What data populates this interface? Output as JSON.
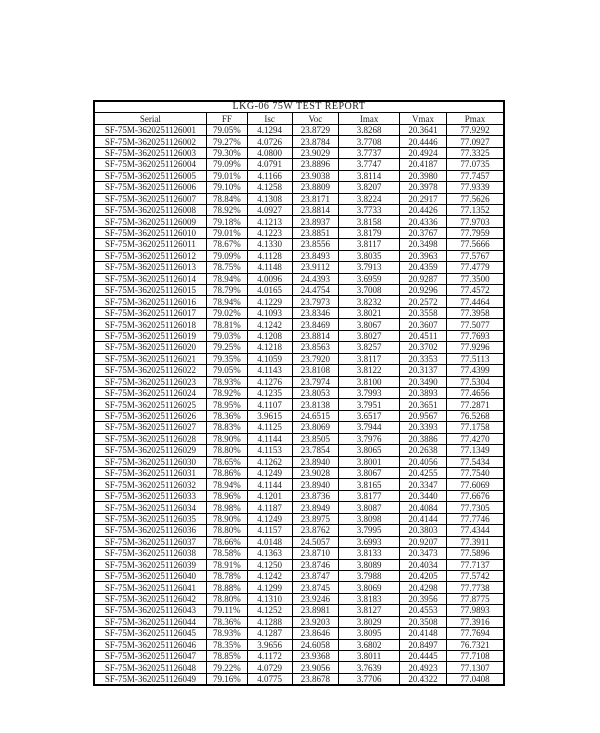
{
  "report": {
    "title": "LKG-06 75W TEST REPORT",
    "columns": [
      "Serial",
      "FF",
      "Isc",
      "Voc",
      "Imax",
      "Vmax",
      "Pmax"
    ],
    "rows": [
      [
        "SF-75M-3620251126001",
        "79.05%",
        "4.1294",
        "23.8729",
        "3.8268",
        "20.3641",
        "77.9292"
      ],
      [
        "SF-75M-3620251126002",
        "79.27%",
        "4.0726",
        "23.8784",
        "3.7708",
        "20.4446",
        "77.0927"
      ],
      [
        "SF-75M-3620251126003",
        "79.30%",
        "4.0800",
        "23.9029",
        "3.7737",
        "20.4924",
        "77.3325"
      ],
      [
        "SF-75M-3620251126004",
        "79.09%",
        "4.0791",
        "23.8896",
        "3.7747",
        "20.4187",
        "77.0735"
      ],
      [
        "SF-75M-3620251126005",
        "79.01%",
        "4.1166",
        "23.9038",
        "3.8114",
        "20.3980",
        "77.7457"
      ],
      [
        "SF-75M-3620251126006",
        "79.10%",
        "4.1258",
        "23.8809",
        "3.8207",
        "20.3978",
        "77.9339"
      ],
      [
        "SF-75M-3620251126007",
        "78.84%",
        "4.1308",
        "23.8171",
        "3.8224",
        "20.2917",
        "77.5626"
      ],
      [
        "SF-75M-3620251126008",
        "78.92%",
        "4.0927",
        "23.8814",
        "3.7733",
        "20.4426",
        "77.1352"
      ],
      [
        "SF-75M-3620251126009",
        "79.18%",
        "4.1213",
        "23.8937",
        "3.8158",
        "20.4336",
        "77.9703"
      ],
      [
        "SF-75M-3620251126010",
        "79.01%",
        "4.1223",
        "23.8851",
        "3.8179",
        "20.3767",
        "77.7959"
      ],
      [
        "SF-75M-3620251126011",
        "78.67%",
        "4.1330",
        "23.8556",
        "3.8117",
        "20.3498",
        "77.5666"
      ],
      [
        "SF-75M-3620251126012",
        "79.09%",
        "4.1128",
        "23.8493",
        "3.8035",
        "20.3963",
        "77.5767"
      ],
      [
        "SF-75M-3620251126013",
        "78.75%",
        "4.1148",
        "23.9112",
        "3.7913",
        "20.4359",
        "77.4779"
      ],
      [
        "SF-75M-3620251126014",
        "78.94%",
        "4.0096",
        "24.4393",
        "3.6959",
        "20.9287",
        "77.3500"
      ],
      [
        "SF-75M-3620251126015",
        "78.79%",
        "4.0165",
        "24.4754",
        "3.7008",
        "20.9296",
        "77.4572"
      ],
      [
        "SF-75M-3620251126016",
        "78.94%",
        "4.1229",
        "23.7973",
        "3.8232",
        "20.2572",
        "77.4464"
      ],
      [
        "SF-75M-3620251126017",
        "79.02%",
        "4.1093",
        "23.8346",
        "3.8021",
        "20.3558",
        "77.3958"
      ],
      [
        "SF-75M-3620251126018",
        "78.81%",
        "4.1242",
        "23.8469",
        "3.8067",
        "20.3607",
        "77.5077"
      ],
      [
        "SF-75M-3620251126019",
        "79.03%",
        "4.1208",
        "23.8814",
        "3.8027",
        "20.4511",
        "77.7693"
      ],
      [
        "SF-75M-3620251126020",
        "79.25%",
        "4.1218",
        "23.8563",
        "3.8257",
        "20.3702",
        "77.9296"
      ],
      [
        "SF-75M-3620251126021",
        "79.35%",
        "4.1059",
        "23.7920",
        "3.8117",
        "20.3353",
        "77.5113"
      ],
      [
        "SF-75M-3620251126022",
        "79.05%",
        "4.1143",
        "23.8108",
        "3.8122",
        "20.3137",
        "77.4399"
      ],
      [
        "SF-75M-3620251126023",
        "78.93%",
        "4.1276",
        "23.7974",
        "3.8100",
        "20.3490",
        "77.5304"
      ],
      [
        "SF-75M-3620251126024",
        "78.92%",
        "4.1235",
        "23.8053",
        "3.7993",
        "20.3893",
        "77.4656"
      ],
      [
        "SF-75M-3620251126025",
        "78.95%",
        "4.1107",
        "23.8138",
        "3.7951",
        "20.3651",
        "77.2871"
      ],
      [
        "SF-75M-3620251126026",
        "78.36%",
        "3.9615",
        "24.6515",
        "3.6517",
        "20.9567",
        "76.5268"
      ],
      [
        "SF-75M-3620251126027",
        "78.83%",
        "4.1125",
        "23.8069",
        "3.7944",
        "20.3393",
        "77.1758"
      ],
      [
        "SF-75M-3620251126028",
        "78.90%",
        "4.1144",
        "23.8505",
        "3.7976",
        "20.3886",
        "77.4270"
      ],
      [
        "SF-75M-3620251126029",
        "78.80%",
        "4.1153",
        "23.7854",
        "3.8065",
        "20.2638",
        "77.1349"
      ],
      [
        "SF-75M-3620251126030",
        "78.65%",
        "4.1262",
        "23.8940",
        "3.8001",
        "20.4056",
        "77.5434"
      ],
      [
        "SF-75M-3620251126031",
        "78.86%",
        "4.1249",
        "23.9028",
        "3.8067",
        "20.4255",
        "77.7540"
      ],
      [
        "SF-75M-3620251126032",
        "78.94%",
        "4.1144",
        "23.8940",
        "3.8165",
        "20.3347",
        "77.6069"
      ],
      [
        "SF-75M-3620251126033",
        "78.96%",
        "4.1201",
        "23.8736",
        "3.8177",
        "20.3440",
        "77.6676"
      ],
      [
        "SF-75M-3620251126034",
        "78.98%",
        "4.1187",
        "23.8949",
        "3.8087",
        "20.4084",
        "77.7305"
      ],
      [
        "SF-75M-3620251126035",
        "78.90%",
        "4.1249",
        "23.8975",
        "3.8098",
        "20.4144",
        "77.7746"
      ],
      [
        "SF-75M-3620251126036",
        "78.80%",
        "4.1157",
        "23.8762",
        "3.7995",
        "20.3803",
        "77.4344"
      ],
      [
        "SF-75M-3620251126037",
        "78.66%",
        "4.0148",
        "24.5057",
        "3.6993",
        "20.9207",
        "77.3911"
      ],
      [
        "SF-75M-3620251126038",
        "78.58%",
        "4.1363",
        "23.8710",
        "3.8133",
        "20.3473",
        "77.5896"
      ],
      [
        "SF-75M-3620251126039",
        "78.91%",
        "4.1250",
        "23.8746",
        "3.8089",
        "20.4034",
        "77.7137"
      ],
      [
        "SF-75M-3620251126040",
        "78.78%",
        "4.1242",
        "23.8747",
        "3.7988",
        "20.4205",
        "77.5742"
      ],
      [
        "SF-75M-3620251126041",
        "78.88%",
        "4.1299",
        "23.8745",
        "3.8069",
        "20.4298",
        "77.7738"
      ],
      [
        "SF-75M-3620251126042",
        "78.80%",
        "4.1310",
        "23.9246",
        "3.8183",
        "20.3956",
        "77.8775"
      ],
      [
        "SF-75M-3620251126043",
        "79.11%",
        "4.1252",
        "23.8981",
        "3.8127",
        "20.4553",
        "77.9893"
      ],
      [
        "SF-75M-3620251126044",
        "78.36%",
        "4.1288",
        "23.9203",
        "3.8029",
        "20.3508",
        "77.3916"
      ],
      [
        "SF-75M-3620251126045",
        "78.93%",
        "4.1287",
        "23.8646",
        "3.8095",
        "20.4148",
        "77.7694"
      ],
      [
        "SF-75M-3620251126046",
        "78.35%",
        "3.9656",
        "24.6058",
        "3.6802",
        "20.8497",
        "76.7321"
      ],
      [
        "SF-75M-3620251126047",
        "78.85%",
        "4.1172",
        "23.9368",
        "3.8011",
        "20.4445",
        "77.7108"
      ],
      [
        "SF-75M-3620251126048",
        "79.22%",
        "4.0729",
        "23.9056",
        "3.7639",
        "20.4923",
        "77.1307"
      ],
      [
        "SF-75M-3620251126049",
        "79.16%",
        "4.0775",
        "23.8678",
        "3.7706",
        "20.4322",
        "77.0408"
      ]
    ]
  }
}
